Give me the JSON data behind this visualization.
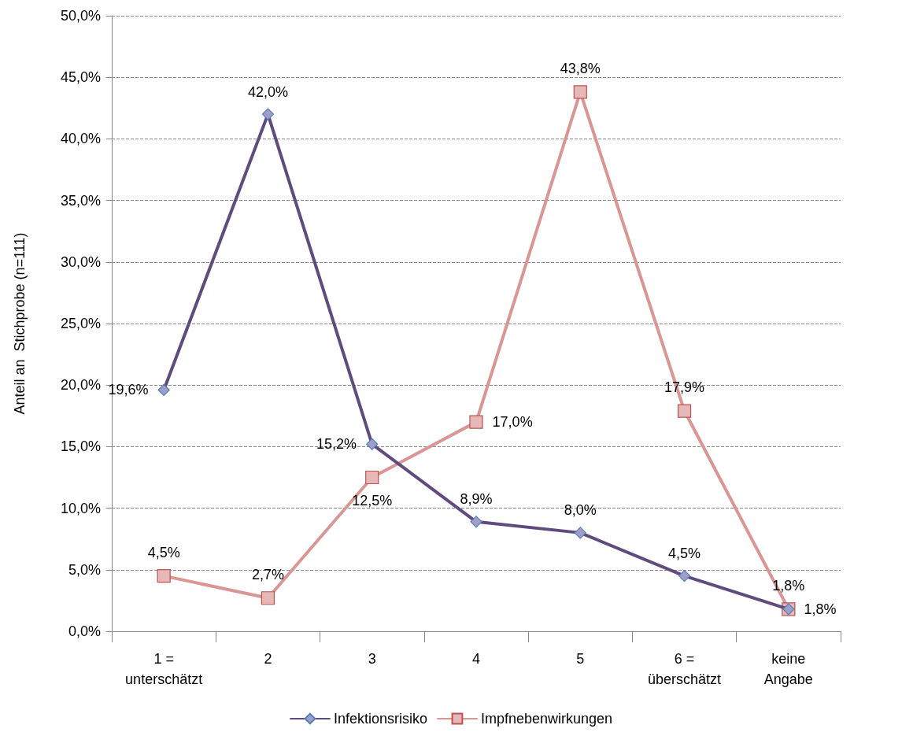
{
  "chart_data": {
    "type": "line",
    "ylabel": "Anteil an  Stichprobe (n=111)",
    "categories": [
      "1 =\nunterschätzt",
      "2",
      "3",
      "4",
      "5",
      "6 =\nüberschätzt",
      "keine\nAngabe"
    ],
    "series": [
      {
        "name": "Infektionsrisiko",
        "color": "#5f4b7e",
        "marker": "diamond",
        "values": [
          19.6,
          42.0,
          15.2,
          8.9,
          8.0,
          4.5,
          1.8
        ],
        "value_labels": [
          "19,6%",
          "42,0%",
          "15,2%",
          "8,9%",
          "8,0%",
          "4,5%",
          "1,8%"
        ]
      },
      {
        "name": "Impfnebenwirkungen",
        "color": "#d99694",
        "marker": "square",
        "values": [
          4.5,
          2.7,
          12.5,
          17.0,
          43.8,
          17.9,
          1.8
        ],
        "value_labels": [
          "4,5%",
          "2,7%",
          "12,5%",
          "17,0%",
          "43,8%",
          "17,9%",
          "1,8%"
        ]
      }
    ],
    "ylim": [
      0,
      50
    ],
    "yticks": [
      {
        "value": 0,
        "label": "0,0%"
      },
      {
        "value": 5,
        "label": "5,0%"
      },
      {
        "value": 10,
        "label": "10,0%"
      },
      {
        "value": 15,
        "label": "15,0%"
      },
      {
        "value": 20,
        "label": "20,0%"
      },
      {
        "value": 25,
        "label": "25,0%"
      },
      {
        "value": 30,
        "label": "30,0%"
      },
      {
        "value": 35,
        "label": "35,0%"
      },
      {
        "value": 40,
        "label": "40,0%"
      },
      {
        "value": 45,
        "label": "45,0%"
      },
      {
        "value": 50,
        "label": "50,0%"
      }
    ],
    "grid": "y",
    "legend": "bottom",
    "line_style": "solid"
  }
}
